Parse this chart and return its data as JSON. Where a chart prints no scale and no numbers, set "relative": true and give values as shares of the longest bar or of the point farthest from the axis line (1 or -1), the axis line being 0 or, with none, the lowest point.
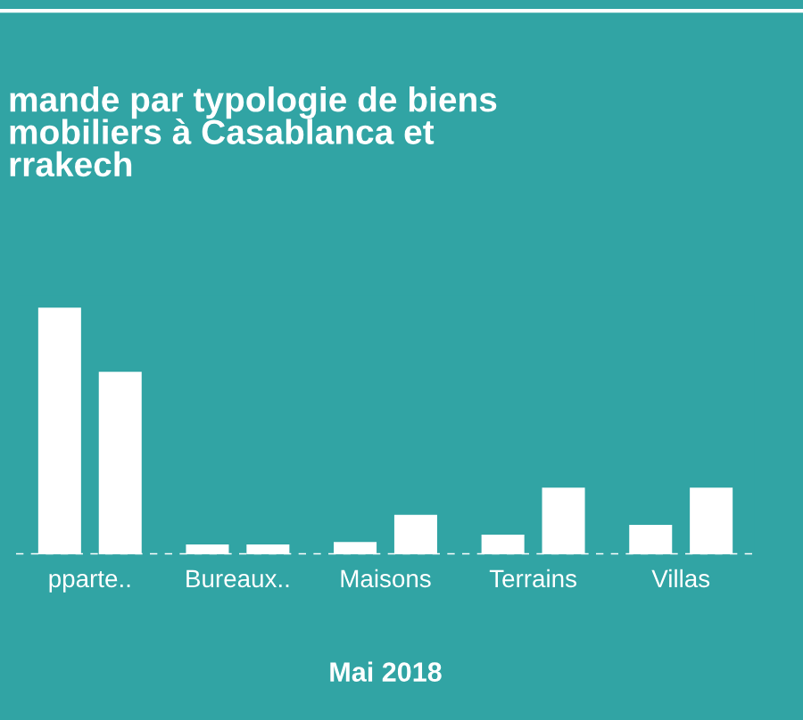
{
  "chart_data": {
    "type": "bar",
    "title": "mande par typologie de biens\nmobiliers à Casablanca et\nrrakech",
    "xlabel": "Mai 2018",
    "categories": [
      "pparte..",
      "Bureaux..",
      "Maisons",
      "Terrains",
      "Villas"
    ],
    "relative": true,
    "series": [
      {
        "color": "#ffffff",
        "values": [
          1,
          0.04,
          0.05,
          0.08,
          0.12
        ]
      },
      {
        "color": "#ffffff",
        "values": [
          0.74,
          0.04,
          0.16,
          0.27,
          0.27
        ]
      }
    ],
    "grid": false,
    "legend": false
  }
}
